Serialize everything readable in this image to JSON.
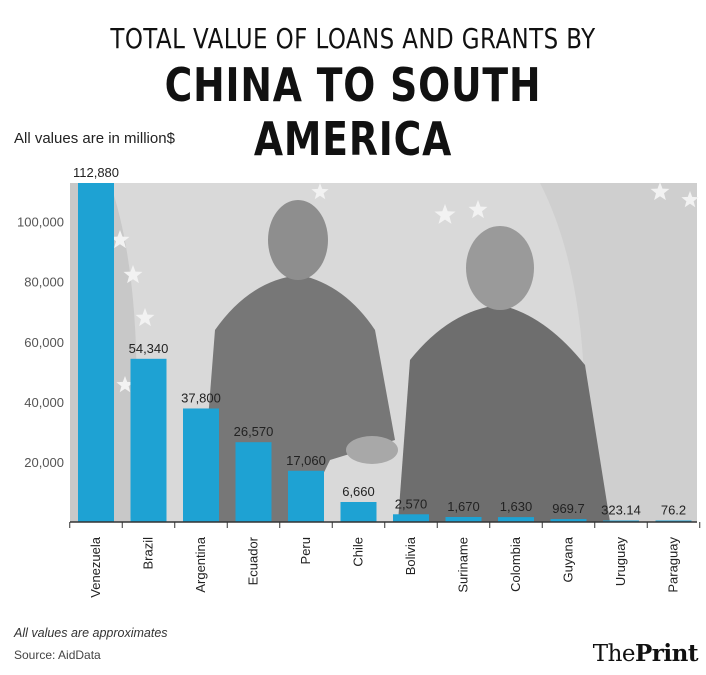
{
  "title": {
    "line1": "TOTAL VALUE OF LOANS AND GRANTS BY",
    "line2": "CHINA TO SOUTH AMERICA"
  },
  "subtitle": "All values are in million$",
  "note": "All values are approximates",
  "source": "Source: AidData",
  "logo": {
    "part1": "The",
    "part2": "Print"
  },
  "colors": {
    "bar": "#1ea2d3",
    "background_photo": "#d9d9d9"
  },
  "chart_data": {
    "type": "bar",
    "categories": [
      "Venezuela",
      "Brazil",
      "Argentina",
      "Ecuador",
      "Peru",
      "Chile",
      "Bolivia",
      "Suriname",
      "Colombia",
      "Guyana",
      "Uruguay",
      "Paraguay"
    ],
    "values": [
      112880,
      54340,
      37800,
      26570,
      17060,
      6660,
      2570,
      1670,
      1630,
      969.7,
      323.14,
      76.2
    ],
    "value_labels": [
      "112,880",
      "54,340",
      "37,800",
      "26,570",
      "17,060",
      "6,660",
      "2,570",
      "1,670",
      "1,630",
      "969.7",
      "323.14",
      "76.2"
    ],
    "yticks": [
      20000,
      40000,
      60000,
      80000,
      100000
    ],
    "ytick_labels": [
      "20,000",
      "40,000",
      "60,000",
      "80,000",
      "100,000"
    ],
    "ylim": [
      0,
      112880
    ],
    "grid": false
  }
}
